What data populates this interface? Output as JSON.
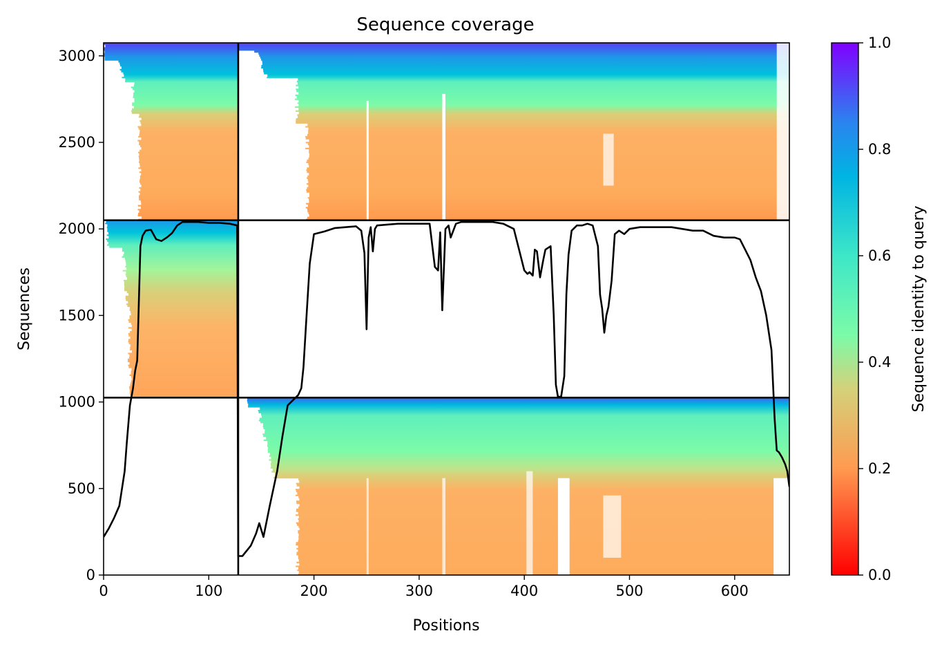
{
  "chart_data": {
    "type": "heatmap",
    "title": "Sequence coverage",
    "xlabel": "Positions",
    "ylabel": "Sequences",
    "xlim": [
      0,
      652
    ],
    "ylim": [
      0,
      3075
    ],
    "xticks": [
      "0",
      "100",
      "200",
      "300",
      "400",
      "500",
      "600"
    ],
    "xtick_values": [
      0,
      100,
      200,
      300,
      400,
      500,
      600
    ],
    "yticks": [
      "0",
      "500",
      "1000",
      "1500",
      "2000",
      "2500",
      "3000"
    ],
    "ytick_values": [
      0,
      500,
      1000,
      1500,
      2000,
      2500,
      3000
    ],
    "colorbar": {
      "label": "Sequence identity to query",
      "colormap": "rainbow_r",
      "range": [
        0.0,
        1.0
      ],
      "ticks": [
        "0.0",
        "0.2",
        "0.4",
        "0.6",
        "0.8",
        "1.0"
      ],
      "tick_values": [
        0.0,
        0.2,
        0.4,
        0.6,
        0.8,
        1.0
      ]
    },
    "chain_boundaries_x": [
      128
    ],
    "chain_boundaries_y": [
      1025,
      2050
    ],
    "blocks": [
      {
        "x_range": [
          0,
          128
        ],
        "y_range": [
          2050,
          3075
        ],
        "identity_top": 0.95,
        "identity_bottom": 0.24
      },
      {
        "x_range": [
          128,
          652
        ],
        "y_range": [
          2050,
          3075
        ],
        "identity_top": 0.95,
        "identity_bottom": 0.24
      },
      {
        "x_range": [
          0,
          128
        ],
        "y_range": [
          1025,
          2050
        ],
        "identity_top": 0.85,
        "identity_bottom": 0.24
      },
      {
        "x_range": [
          128,
          652
        ],
        "y_range": [
          0,
          1025
        ],
        "identity_top": 0.95,
        "identity_bottom": 0.25
      }
    ],
    "coverage_line": {
      "color": "#000000",
      "x": [
        0,
        5,
        10,
        15,
        20,
        22,
        25,
        28,
        30,
        32,
        35,
        37,
        40,
        45,
        50,
        55,
        60,
        65,
        70,
        75,
        80,
        90,
        100,
        110,
        120,
        127,
        128,
        132,
        140,
        145,
        148,
        152,
        158,
        165,
        170,
        175,
        180,
        185,
        188,
        190,
        193,
        196,
        200,
        210,
        220,
        230,
        240,
        245,
        248,
        250,
        252,
        254,
        256,
        258,
        260,
        270,
        280,
        290,
        300,
        310,
        315,
        318,
        320,
        322,
        325,
        328,
        330,
        335,
        340,
        345,
        350,
        360,
        370,
        380,
        390,
        395,
        400,
        403,
        405,
        408,
        410,
        412,
        415,
        418,
        420,
        425,
        428,
        430,
        432,
        435,
        438,
        440,
        442,
        445,
        450,
        455,
        460,
        465,
        470,
        472,
        474,
        476,
        478,
        480,
        483,
        486,
        490,
        495,
        500,
        510,
        520,
        530,
        540,
        550,
        560,
        570,
        580,
        590,
        600,
        605,
        610,
        615,
        620,
        625,
        630,
        635,
        638,
        640,
        642,
        645,
        648,
        650,
        652
      ],
      "y": [
        220,
        270,
        330,
        400,
        600,
        760,
        980,
        1080,
        1180,
        1240,
        1900,
        1960,
        1990,
        1995,
        1940,
        1930,
        1950,
        1975,
        2020,
        2040,
        2040,
        2040,
        2035,
        2035,
        2030,
        2020,
        110,
        110,
        170,
        240,
        300,
        220,
        400,
        600,
        800,
        980,
        1010,
        1040,
        1080,
        1200,
        1500,
        1800,
        1970,
        1985,
        2005,
        2010,
        2015,
        1990,
        1860,
        1420,
        1950,
        2010,
        1870,
        2000,
        2020,
        2025,
        2030,
        2030,
        2030,
        2030,
        1780,
        1760,
        1980,
        1530,
        2000,
        2020,
        1950,
        2030,
        2040,
        2040,
        2040,
        2040,
        2040,
        2030,
        2000,
        1880,
        1760,
        1740,
        1750,
        1730,
        1880,
        1870,
        1720,
        1820,
        1880,
        1900,
        1500,
        1100,
        1030,
        1030,
        1150,
        1620,
        1850,
        1990,
        2020,
        2020,
        2030,
        2020,
        1900,
        1620,
        1540,
        1400,
        1500,
        1550,
        1700,
        1970,
        1990,
        1970,
        2000,
        2010,
        2010,
        2010,
        2010,
        2000,
        1990,
        1990,
        1960,
        1950,
        1950,
        1940,
        1880,
        1820,
        1720,
        1640,
        1500,
        1300,
        900,
        720,
        710,
        680,
        640,
        600,
        510
      ]
    }
  }
}
